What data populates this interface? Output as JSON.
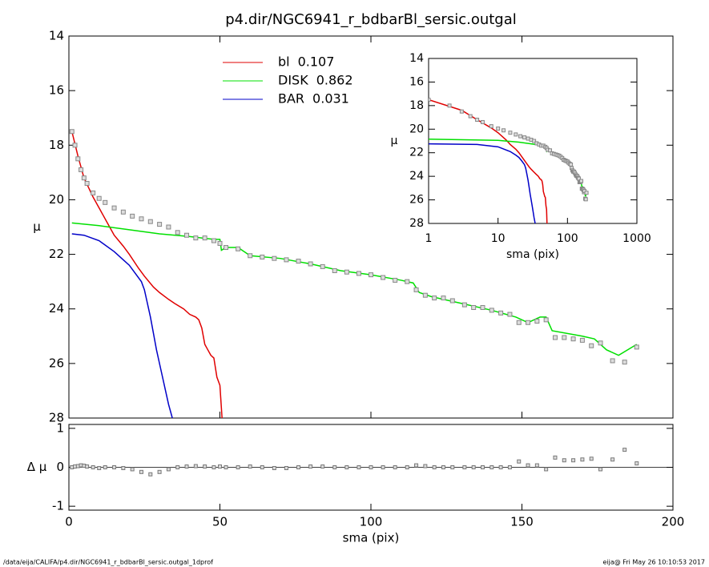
{
  "chart_data": [
    {
      "type": "line",
      "title": "p4.dir/NGC6941_r_bdbarBl_sersic.outgal",
      "ylabel": "μ",
      "xlim": [
        0,
        200
      ],
      "ylim": [
        28,
        14
      ],
      "yticks": [
        14,
        16,
        18,
        20,
        22,
        24,
        26,
        28
      ],
      "points": {
        "color": "#888888",
        "x": [
          1,
          2,
          3,
          4,
          5,
          6,
          8,
          10,
          12,
          15,
          18,
          21,
          24,
          27,
          30,
          33,
          36,
          39,
          42,
          45,
          48,
          50,
          52,
          56,
          60,
          64,
          68,
          72,
          76,
          80,
          84,
          88,
          92,
          96,
          100,
          104,
          108,
          112,
          115,
          118,
          121,
          124,
          127,
          131,
          134,
          137,
          140,
          143,
          146,
          149,
          152,
          155,
          158,
          161,
          164,
          167,
          170,
          173,
          176,
          180,
          184,
          188
        ],
        "values": [
          17.5,
          18.0,
          18.5,
          18.9,
          19.2,
          19.4,
          19.75,
          19.95,
          20.1,
          20.3,
          20.45,
          20.6,
          20.7,
          20.8,
          20.9,
          21.0,
          21.2,
          21.3,
          21.4,
          21.4,
          21.5,
          21.6,
          21.75,
          21.8,
          22.05,
          22.1,
          22.15,
          22.2,
          22.25,
          22.35,
          22.45,
          22.6,
          22.65,
          22.7,
          22.75,
          22.85,
          22.95,
          23.0,
          23.3,
          23.5,
          23.6,
          23.6,
          23.7,
          23.85,
          23.95,
          23.95,
          24.05,
          24.15,
          24.2,
          24.5,
          24.5,
          24.45,
          24.4,
          25.05,
          25.05,
          25.1,
          25.15,
          25.35,
          25.25,
          25.9,
          25.95,
          25.4
        ]
      },
      "series": [
        {
          "name": "bl",
          "fraction": 0.107,
          "color": "#e00000",
          "x": [
            1,
            3,
            5,
            8,
            10,
            13,
            15,
            18,
            20,
            23,
            25,
            28,
            30,
            33,
            35,
            38,
            40,
            42,
            43,
            44,
            45,
            46,
            47,
            48,
            49,
            50,
            51
          ],
          "values": [
            17.5,
            18.4,
            19.2,
            19.9,
            20.3,
            20.9,
            21.3,
            21.7,
            22.0,
            22.5,
            22.8,
            23.2,
            23.4,
            23.65,
            23.8,
            24.0,
            24.2,
            24.3,
            24.4,
            24.7,
            25.3,
            25.5,
            25.7,
            25.8,
            26.5,
            26.8,
            28.5
          ]
        },
        {
          "name": "DISK",
          "fraction": 0.862,
          "color": "#00e000",
          "x": [
            1,
            10,
            20,
            30,
            40,
            48,
            50,
            50.5,
            52,
            56,
            60,
            70,
            80,
            90,
            100,
            110,
            114,
            116,
            120,
            130,
            140,
            148,
            152,
            156,
            158,
            160,
            170,
            174,
            178,
            182,
            188
          ],
          "values": [
            20.85,
            20.95,
            21.1,
            21.25,
            21.35,
            21.45,
            21.45,
            21.85,
            21.75,
            21.75,
            22.05,
            22.15,
            22.35,
            22.6,
            22.75,
            22.95,
            23.05,
            23.4,
            23.55,
            23.8,
            24.05,
            24.3,
            24.5,
            24.3,
            24.3,
            24.8,
            25.0,
            25.1,
            25.5,
            25.7,
            25.3
          ]
        },
        {
          "name": "BAR",
          "fraction": 0.031,
          "color": "#0000c8",
          "x": [
            1,
            5,
            10,
            15,
            18,
            20,
            22,
            24,
            25,
            26,
            27,
            28,
            29,
            30,
            31,
            32,
            33,
            34,
            35
          ],
          "values": [
            21.25,
            21.3,
            21.5,
            21.9,
            22.2,
            22.4,
            22.7,
            23.0,
            23.3,
            23.8,
            24.3,
            24.9,
            25.5,
            26.0,
            26.5,
            27.0,
            27.5,
            27.9,
            28.3
          ]
        }
      ]
    },
    {
      "type": "scatter",
      "xlabel": "sma (pix)",
      "ylabel": "Δ μ",
      "xlim": [
        0,
        200
      ],
      "xticks": [
        0,
        50,
        100,
        150,
        200
      ],
      "ylim": [
        -1.1,
        1.1
      ],
      "yticks": [
        -1,
        0,
        1
      ],
      "x": [
        1,
        2,
        3,
        4,
        5,
        6,
        8,
        10,
        12,
        15,
        18,
        21,
        24,
        27,
        30,
        33,
        36,
        39,
        42,
        45,
        48,
        50,
        52,
        56,
        60,
        64,
        68,
        72,
        76,
        80,
        84,
        88,
        92,
        96,
        100,
        104,
        108,
        112,
        115,
        118,
        121,
        124,
        127,
        131,
        134,
        137,
        140,
        143,
        146,
        149,
        152,
        155,
        158,
        161,
        164,
        167,
        170,
        173,
        176,
        180,
        184,
        188
      ],
      "values": [
        0,
        0.02,
        0.03,
        0.05,
        0.04,
        0.02,
        0,
        -0.02,
        0,
        0,
        -0.02,
        -0.05,
        -0.12,
        -0.18,
        -0.12,
        -0.05,
        0,
        0.02,
        0.03,
        0.02,
        0,
        0.02,
        0,
        0,
        0.02,
        0,
        -0.02,
        -0.02,
        0,
        0.02,
        0.02,
        0,
        0,
        0,
        0,
        0,
        0,
        0,
        0.05,
        0.03,
        0,
        0,
        0,
        0,
        0,
        0,
        0,
        0,
        0,
        0.15,
        0.05,
        0.05,
        -0.05,
        0.25,
        0.18,
        0.18,
        0.2,
        0.22,
        -0.05,
        0.2,
        0.45,
        0.1
      ]
    },
    {
      "type": "inset",
      "xlabel": "sma (pix)",
      "ylabel": "μ",
      "log_x": true,
      "xlim": [
        1,
        1000
      ],
      "xticks": [
        1,
        10,
        100,
        1000
      ],
      "ylim": [
        28,
        14
      ],
      "yticks": [
        14,
        16,
        18,
        20,
        22,
        24,
        26,
        28
      ]
    }
  ],
  "footer": {
    "left": "/data/eija/CALIFA/p4.dir/NGC6941_r_bdbarBl_sersic.outgal_1dprof",
    "right": "eija@  Fri May 26 10:10:53 2017"
  }
}
